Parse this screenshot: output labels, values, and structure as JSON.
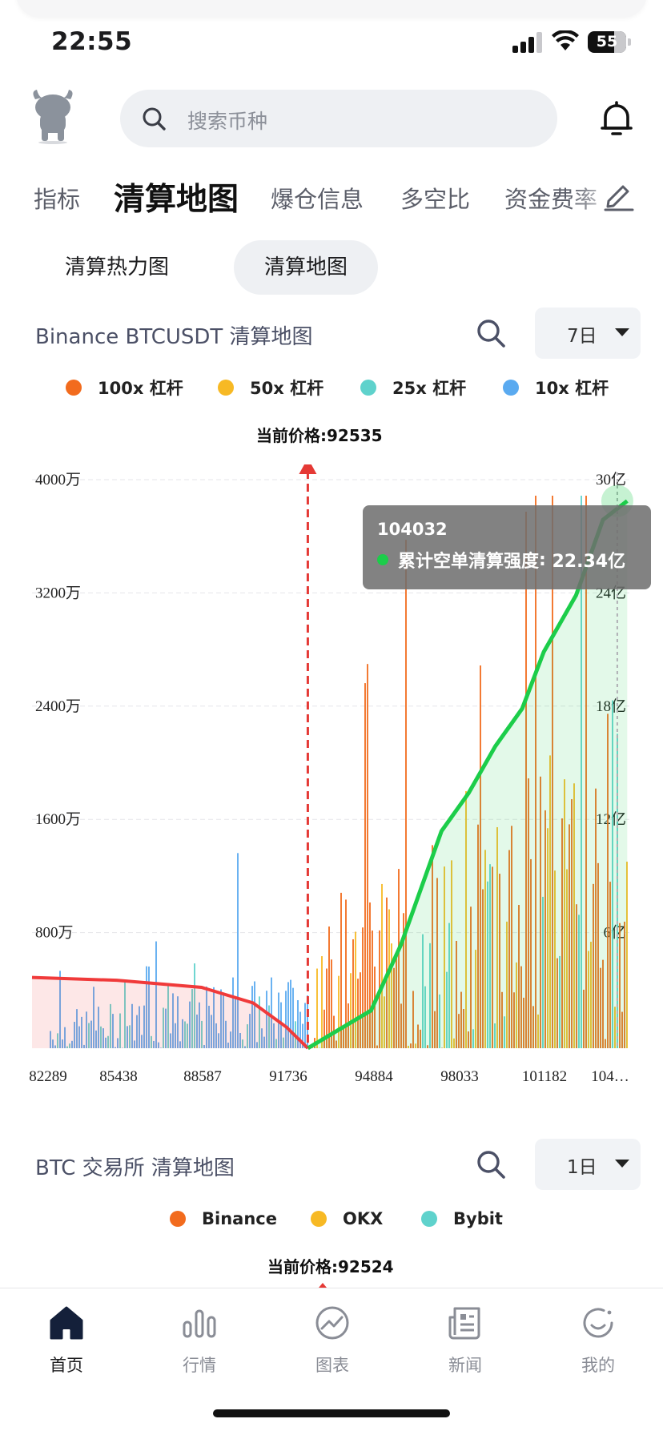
{
  "status_bar": {
    "time": "22:55",
    "battery": "55"
  },
  "header": {
    "search_placeholder": "搜索币种"
  },
  "tabs": [
    "指标",
    "清算地图",
    "爆仓信息",
    "多空比",
    "资金费率"
  ],
  "subtabs": [
    "清算热力图",
    "清算地图"
  ],
  "chart1": {
    "title": "Binance BTCUSDT 清算地图",
    "period": "7日",
    "legend": [
      {
        "label": "100x 杠杆",
        "color": "#f26b1d"
      },
      {
        "label": "50x 杠杆",
        "color": "#f7b924"
      },
      {
        "label": "25x 杠杆",
        "color": "#5fd2cc"
      },
      {
        "label": "10x 杠杆",
        "color": "#5aaaf0"
      }
    ],
    "current_price_label": "当前价格:92535",
    "tooltip": {
      "x": "104032",
      "series": "累计空单清算强度",
      "value": "22.34亿"
    }
  },
  "chart_data": {
    "type": "bar",
    "x_ticks": [
      "82289",
      "85438",
      "88587",
      "91736",
      "94884",
      "98033",
      "101182",
      "104…"
    ],
    "y_left_ticks": [
      "4000万",
      "3200万",
      "2400万",
      "1600万",
      "800万"
    ],
    "y_right_ticks": [
      "30亿",
      "24亿",
      "18亿",
      "12亿",
      "6亿"
    ],
    "y_left_range": [
      0,
      40000000
    ],
    "y_right_range": [
      0,
      3000000000
    ],
    "x_range": [
      82289,
      104600
    ],
    "current_price": 92535,
    "series": [
      {
        "name": "100x 杠杆",
        "color": "#f26b1d"
      },
      {
        "name": "50x 杠杆",
        "color": "#f7b924"
      },
      {
        "name": "25x 杠杆",
        "color": "#5fd2cc"
      },
      {
        "name": "10x 杠杆",
        "color": "#5aaaf0"
      }
    ],
    "cumulative_long": {
      "color": "#f03a3a",
      "points": [
        [
          82289,
          5000000
        ],
        [
          85438,
          4800000
        ],
        [
          88587,
          4300000
        ],
        [
          90500,
          3200000
        ],
        [
          91736,
          1500000
        ],
        [
          92535,
          0
        ]
      ]
    },
    "cumulative_short": {
      "name": "累计空单清算强度",
      "color": "#1ccd4a",
      "points": [
        [
          92535,
          0
        ],
        [
          94884,
          200000000
        ],
        [
          96000,
          550000000
        ],
        [
          97500,
          1150000000
        ],
        [
          98500,
          1350000000
        ],
        [
          99500,
          1600000000
        ],
        [
          100500,
          1800000000
        ],
        [
          101300,
          2100000000
        ],
        [
          102500,
          2400000000
        ],
        [
          103500,
          2800000000
        ],
        [
          104032,
          2234000000
        ],
        [
          104400,
          2900000000
        ]
      ]
    },
    "highlight_x": 104032
  },
  "chart2": {
    "title": "BTC 交易所  清算地图",
    "period": "1日",
    "legend": [
      {
        "label": "Binance",
        "color": "#f26b1d"
      },
      {
        "label": "OKX",
        "color": "#f7b924"
      },
      {
        "label": "Bybit",
        "color": "#5fd2cc"
      }
    ],
    "current_price_label": "当前价格:92524"
  },
  "bottom_nav": [
    {
      "label": "首页",
      "icon": "home-icon"
    },
    {
      "label": "行情",
      "icon": "market-bars-icon"
    },
    {
      "label": "图表",
      "icon": "chart-trend-icon"
    },
    {
      "label": "新闻",
      "icon": "news-icon"
    },
    {
      "label": "我的",
      "icon": "profile-smile-icon"
    }
  ]
}
